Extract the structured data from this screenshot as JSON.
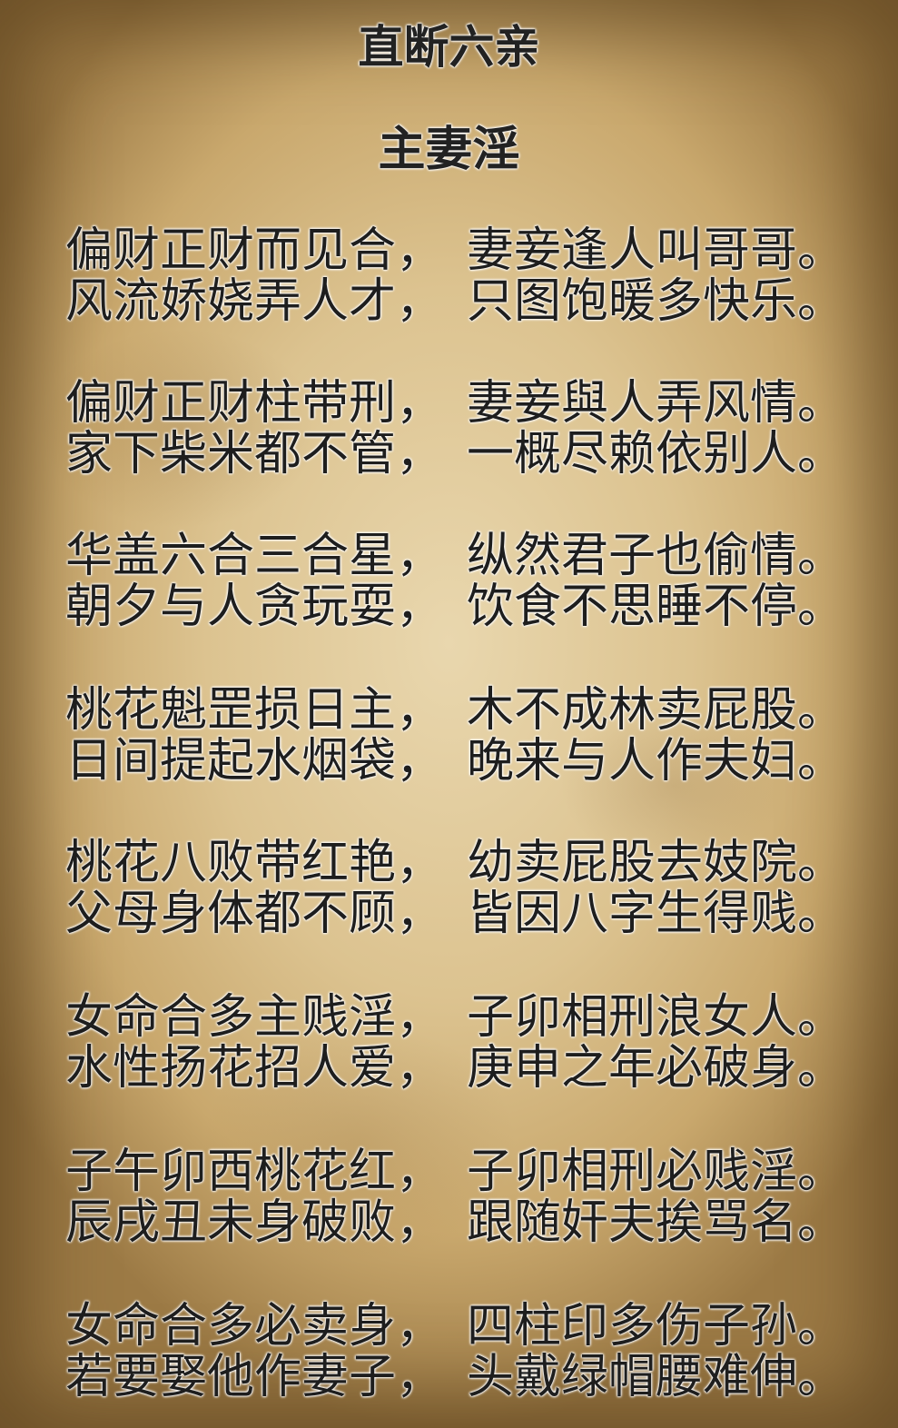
{
  "title": "直断六亲",
  "subtitle": "主妻淫",
  "stanzas": [
    {
      "lines": [
        [
          "偏财正财而见合，",
          "妻妾逢人叫哥哥。"
        ],
        [
          "风流娇娆弄人才，",
          "只图饱暖多快乐。"
        ]
      ]
    },
    {
      "lines": [
        [
          "偏财正财柱带刑，",
          "妻妾與人弄风情。"
        ],
        [
          "家下柴米都不管，",
          "一概尽赖依别人。"
        ]
      ]
    },
    {
      "lines": [
        [
          "华盖六合三合星，",
          "纵然君子也偷情。"
        ],
        [
          "朝夕与人贪玩耍，",
          "饮食不思睡不停。"
        ]
      ]
    },
    {
      "lines": [
        [
          "桃花魁罡损日主，",
          "木不成林卖屁股。"
        ],
        [
          "日间提起水烟袋，",
          "晚来与人作夫妇。"
        ]
      ]
    },
    {
      "lines": [
        [
          "桃花八败带红艳，",
          "幼卖屁股去妓院。"
        ],
        [
          "父母身体都不顾，",
          "皆因八字生得贱。"
        ]
      ]
    },
    {
      "lines": [
        [
          "女命合多主贱淫，",
          "子卯相刑浪女人。"
        ],
        [
          "水性扬花招人爱，",
          "庚申之年必破身。"
        ]
      ]
    },
    {
      "lines": [
        [
          "子午卯西桃花红，",
          "子卯相刑必贱淫。"
        ],
        [
          "辰戌丑未身破败，",
          "跟随奸夫挨骂名。"
        ]
      ]
    },
    {
      "lines": [
        [
          "女命合多必卖身，",
          "四柱印多伤子孙。"
        ],
        [
          "若要娶他作妻子，",
          "头戴绿帽腰难伸。"
        ]
      ]
    }
  ]
}
